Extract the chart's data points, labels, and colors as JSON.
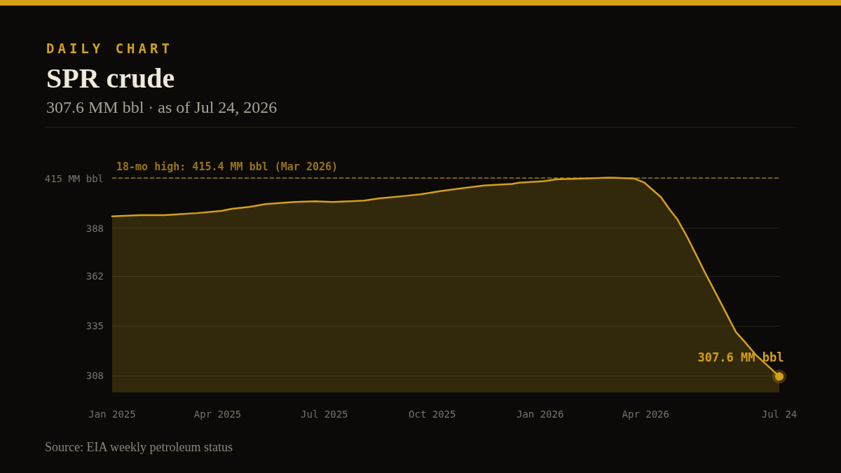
{
  "chart_data": {
    "type": "area",
    "title": "SPR crude",
    "subtitle": "307.6 MM bbl · as of Jul 24, 2026",
    "annotations": [
      "DAILY CHART",
      "Source: EIA weekly petroleum status",
      {
        "text": "307.6 MM bbl",
        "x": "2026-07-24",
        "y": 307.6
      }
    ],
    "x": [
      "2025-01-01",
      "2025-01-25",
      "2025-02-15",
      "2025-03-14",
      "2025-04-04",
      "2025-04-13",
      "2025-04-28",
      "2025-05-12",
      "2025-06-05",
      "2025-06-23",
      "2025-07-08",
      "2025-08-04",
      "2025-08-16",
      "2025-09-09",
      "2025-09-21",
      "2025-10-09",
      "2025-10-27",
      "2025-11-14",
      "2025-12-08",
      "2025-12-14",
      "2026-01-04",
      "2026-01-16",
      "2026-02-08",
      "2026-03-01",
      "2026-03-22",
      "2026-03-31",
      "2026-04-14",
      "2026-04-22",
      "2026-04-28",
      "2026-05-06",
      "2026-05-14",
      "2026-05-21",
      "2026-06-03",
      "2026-06-17",
      "2026-06-24",
      "2026-07-04",
      "2026-07-17",
      "2026-07-24"
    ],
    "series": [
      {
        "color": "#d4a017",
        "values": [
          394.4,
          395.1,
          395.1,
          396.2,
          397.4,
          398.5,
          399.6,
          401.1,
          402.2,
          402.6,
          402.2,
          403,
          404.1,
          405.6,
          406.4,
          408.2,
          409.7,
          411.2,
          412,
          412.7,
          413.5,
          414.6,
          415,
          415.4,
          415,
          412.7,
          404.9,
          397.7,
          392.9,
          383.8,
          373.7,
          364.7,
          348.9,
          331.7,
          326.8,
          319.3,
          311.8,
          307.6
        ]
      }
    ],
    "xlim": [
      "2025-01-01",
      "2026-07-24"
    ],
    "xticks": [
      {
        "value": "2025-01-01",
        "label": "Jan 2025"
      },
      {
        "value": "2025-04-01",
        "label": "Apr 2025"
      },
      {
        "value": "2025-07-01",
        "label": "Jul 2025"
      },
      {
        "value": "2025-10-01",
        "label": "Oct 2025"
      },
      {
        "value": "2026-01-01",
        "label": "Jan 2026"
      },
      {
        "value": "2026-04-01",
        "label": "Apr 2026"
      },
      {
        "value": "2026-07-24",
        "label": "Jul 24"
      }
    ],
    "ylim": [
      299,
      416
    ],
    "yticks": [
      308,
      335,
      362,
      388,
      {
        "value": 415,
        "label": "415 MM bbl"
      }
    ],
    "ref_lines": [
      {
        "axis": "y",
        "value": 415.4,
        "label": "18-mo high: 415.4 MM bbl (Mar 2026)",
        "color": "#d4a017",
        "line_style": "dashed"
      }
    ],
    "grid": "y",
    "marker": "none",
    "line_style": "solid"
  }
}
